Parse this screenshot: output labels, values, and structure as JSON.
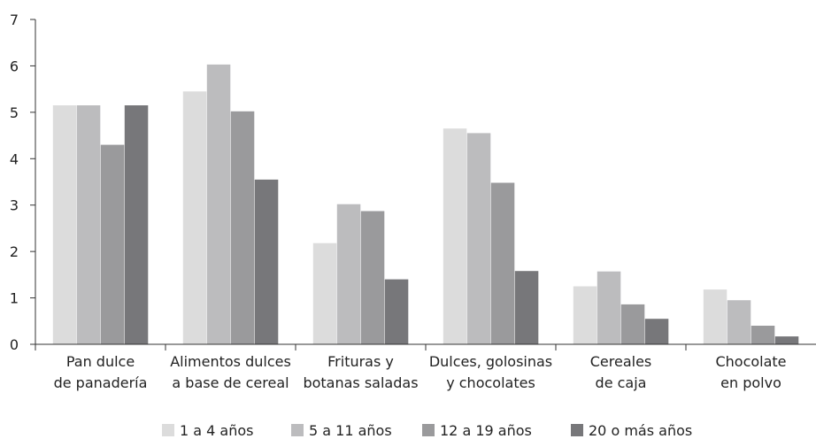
{
  "chart_data": {
    "type": "bar",
    "title": "",
    "xlabel": "",
    "ylabel": "",
    "ylim": [
      0,
      7
    ],
    "yticks": [
      0,
      1,
      2,
      3,
      4,
      5,
      6,
      7
    ],
    "grid": false,
    "legend_position": "bottom",
    "categories": [
      [
        "Pan dulce",
        "de panadería"
      ],
      [
        "Alimentos dulces",
        "a base de cereal"
      ],
      [
        "Frituras y",
        "botanas saladas"
      ],
      [
        "Dulces, golosinas",
        "y chocolates"
      ],
      [
        "Cereales",
        "de caja"
      ],
      [
        "Chocolate",
        "en polvo"
      ]
    ],
    "series": [
      {
        "name": "1 a 4 años",
        "color": "#dcdcdc",
        "values": [
          5.15,
          5.45,
          2.18,
          4.65,
          1.25,
          1.18
        ]
      },
      {
        "name": "5 a 11 años",
        "color": "#bcbcbe",
        "values": [
          5.15,
          6.03,
          3.02,
          4.55,
          1.57,
          0.95
        ]
      },
      {
        "name": "12 a 19 años",
        "color": "#9a9a9c",
        "values": [
          4.3,
          5.02,
          2.87,
          3.48,
          0.86,
          0.4
        ]
      },
      {
        "name": "20 o más años",
        "color": "#77777a",
        "values": [
          5.15,
          3.55,
          1.4,
          1.58,
          0.55,
          0.17
        ]
      }
    ]
  }
}
